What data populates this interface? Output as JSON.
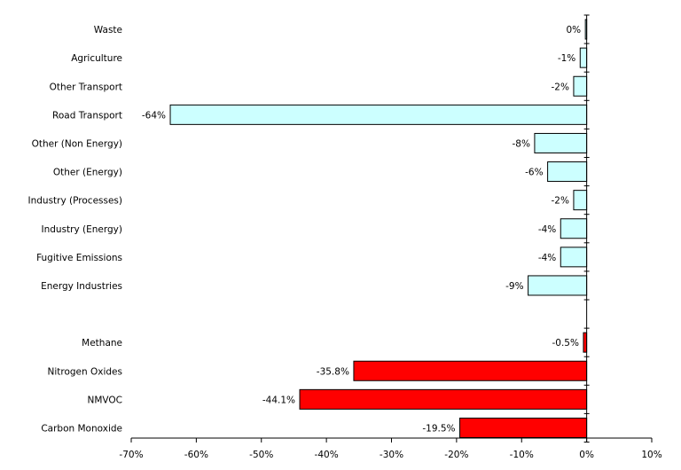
{
  "chart_data": {
    "type": "bar",
    "orientation": "horizontal",
    "categories": [
      "Waste",
      "Agriculture",
      "Other Transport",
      "Road Transport",
      "Other (Non Energy)",
      "Other (Energy)",
      "Industry (Processes)",
      "Industry (Energy)",
      "Fugitive Emissions",
      "Energy Industries",
      "",
      "Methane",
      "Nitrogen Oxides",
      "NMVOC",
      "Carbon Monoxide"
    ],
    "values": [
      -0.2,
      -1,
      -2,
      -64,
      -8,
      -6,
      -2,
      -4,
      -4,
      -9,
      null,
      -0.5,
      -35.8,
      -44.1,
      -19.5
    ],
    "value_labels": [
      "0%",
      "-1%",
      "-2%",
      "-64%",
      "-8%",
      "-6%",
      "-2%",
      "-4%",
      "-4%",
      "-9%",
      "",
      "-0.5%",
      "-35.8%",
      "-44.1%",
      "-19.5%"
    ],
    "groups": [
      "sector",
      "sector",
      "sector",
      "sector",
      "sector",
      "sector",
      "sector",
      "sector",
      "sector",
      "sector",
      "gap",
      "pollutant",
      "pollutant",
      "pollutant",
      "pollutant"
    ],
    "colors": {
      "sector": "#ccffff",
      "pollutant": "#ff0000",
      "outline": "#000000"
    },
    "xlim": [
      -70,
      10
    ],
    "xticks": [
      -70,
      -60,
      -50,
      -40,
      -30,
      -20,
      -10,
      0,
      10
    ],
    "xtick_labels": [
      "-70%",
      "-60%",
      "-50%",
      "-40%",
      "-30%",
      "-20%",
      "-10%",
      "0%",
      "10%"
    ],
    "title": "",
    "xlabel": "",
    "ylabel": "",
    "grid": false,
    "legend": "none"
  }
}
